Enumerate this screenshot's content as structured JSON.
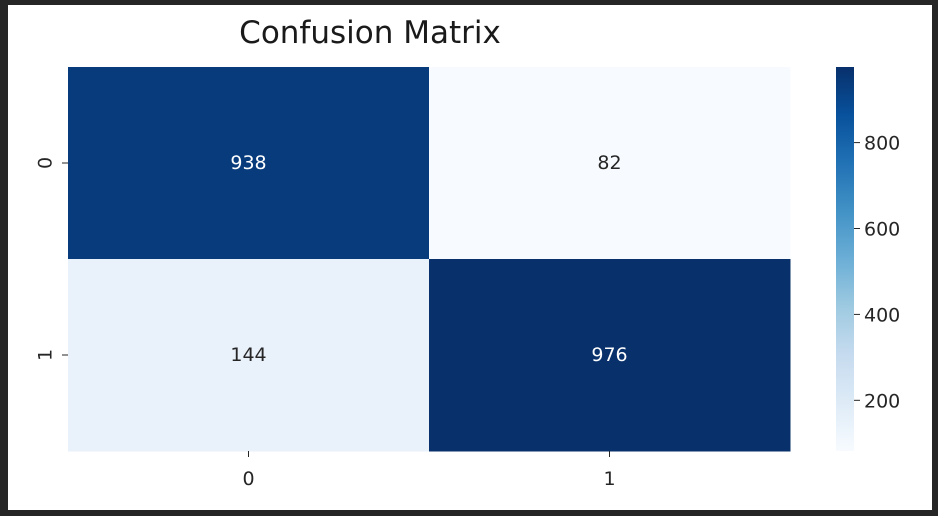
{
  "chart_data": {
    "type": "heatmap",
    "title": "Confusion Matrix",
    "xlabel": "",
    "ylabel": "",
    "x_categories": [
      "0",
      "1"
    ],
    "y_categories": [
      "0",
      "1"
    ],
    "values": [
      [
        938,
        82
      ],
      [
        144,
        976
      ]
    ],
    "colorbar": {
      "ticks": [
        200,
        400,
        600,
        800
      ],
      "range": [
        82,
        976
      ]
    },
    "colormap": "Blues",
    "colors": {
      "low": "#f7fbff",
      "high": "#08306b",
      "annot_dark_bg": "#ffffff",
      "annot_light_bg": "#262626"
    }
  }
}
